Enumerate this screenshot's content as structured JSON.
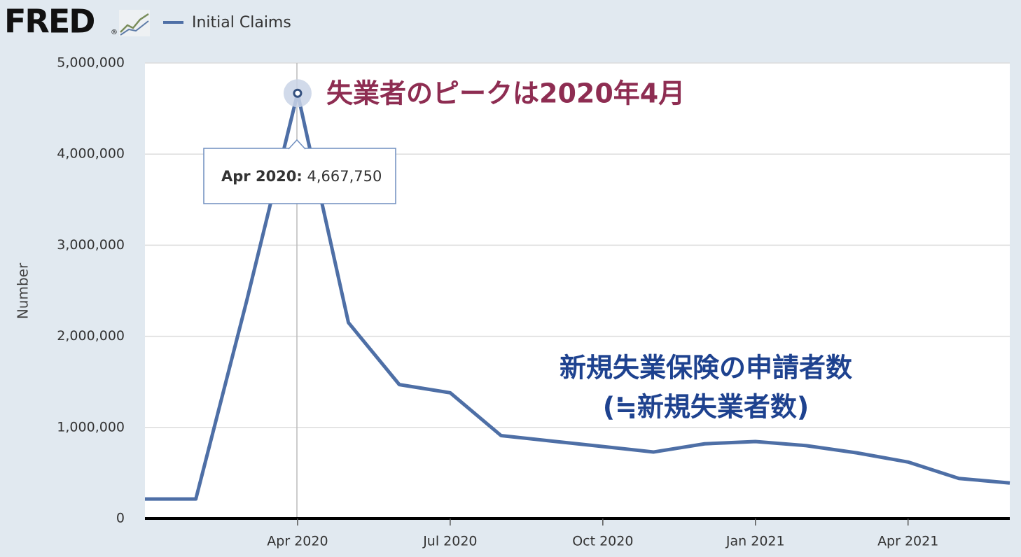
{
  "chart_data": {
    "type": "line",
    "logo": "FRED",
    "logo_mark": "®",
    "y_label": "Number",
    "x": [
      "2020-01",
      "2020-02",
      "2020-03",
      "2020-04",
      "2020-05",
      "2020-06",
      "2020-07",
      "2020-08",
      "2020-09",
      "2020-10",
      "2020-11",
      "2020-12",
      "2021-01",
      "2021-02",
      "2021-03",
      "2021-04",
      "2021-05",
      "2021-06"
    ],
    "series": [
      {
        "name": "Initial Claims",
        "color": "#4e6fa6",
        "values": [
          214000,
          214000,
          2390000,
          4667750,
          2150000,
          1470000,
          1380000,
          910000,
          850000,
          790000,
          730000,
          820000,
          845000,
          800000,
          720000,
          620000,
          440000,
          390000
        ]
      }
    ],
    "xlim": [
      "2020-01",
      "2021-06"
    ],
    "xticks": [
      {
        "value": "2020-04",
        "label": "Apr 2020"
      },
      {
        "value": "2020-07",
        "label": "Jul 2020"
      },
      {
        "value": "2020-10",
        "label": "Oct 2020"
      },
      {
        "value": "2021-01",
        "label": "Jan 2021"
      },
      {
        "value": "2021-04",
        "label": "Apr 2021"
      }
    ],
    "ylim": [
      0,
      5000000
    ],
    "yticks": [
      0,
      {
        "value": 1000000,
        "label": "1,000,000"
      },
      {
        "value": 2000000,
        "label": "2,000,000"
      },
      {
        "value": 3000000,
        "label": "3,000,000"
      },
      {
        "value": 4000000,
        "label": "4,000,000"
      },
      {
        "value": 5000000,
        "label": "5,000,000"
      }
    ],
    "grid": true,
    "tooltip": {
      "label": "Apr 2020:",
      "value_label": "4,667,750"
    },
    "annotations": [
      {
        "text": "失業者のピークは2020年4月",
        "color": "#8e2d52"
      },
      {
        "text": "新規失業保険の申請者数",
        "color": "#1e428f"
      },
      {
        "text": "(≒新規失業者数)",
        "color": "#1e428f"
      }
    ]
  }
}
